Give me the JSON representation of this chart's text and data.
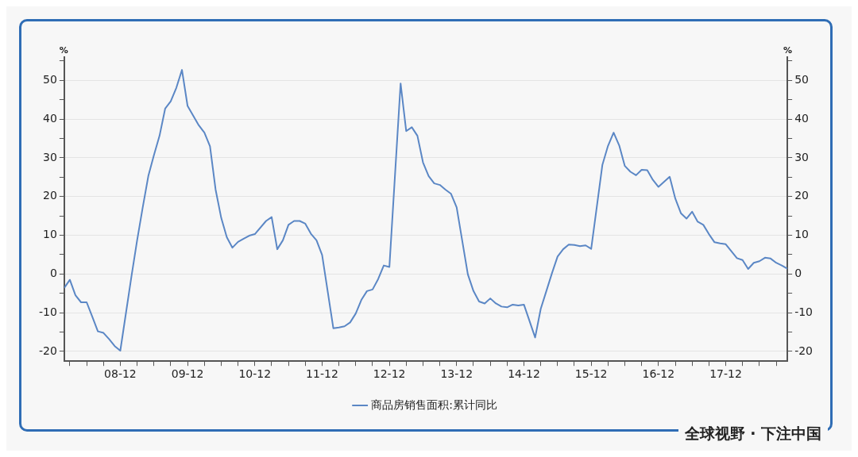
{
  "chart_data": {
    "type": "line",
    "ylabel": "%",
    "y2label": "%",
    "x": [
      "2008-02",
      "2008-03",
      "2008-04",
      "2008-05",
      "2008-06",
      "2008-07",
      "2008-08",
      "2008-09",
      "2008-10",
      "2008-11",
      "2008-12",
      "2009-02",
      "2009-03",
      "2009-04",
      "2009-05",
      "2009-06",
      "2009-07",
      "2009-08",
      "2009-09",
      "2009-10",
      "2009-11",
      "2009-12",
      "2010-02",
      "2010-03",
      "2010-04",
      "2010-05",
      "2010-06",
      "2010-07",
      "2010-08",
      "2010-09",
      "2010-10",
      "2010-11",
      "2010-12",
      "2011-02",
      "2011-03",
      "2011-04",
      "2011-05",
      "2011-06",
      "2011-07",
      "2011-08",
      "2011-09",
      "2011-10",
      "2011-11",
      "2011-12",
      "2012-02",
      "2012-03",
      "2012-04",
      "2012-05",
      "2012-06",
      "2012-07",
      "2012-08",
      "2012-09",
      "2012-10",
      "2012-11",
      "2012-12",
      "2013-02",
      "2013-03",
      "2013-04",
      "2013-05",
      "2013-06",
      "2013-07",
      "2013-08",
      "2013-09",
      "2013-10",
      "2013-11",
      "2013-12",
      "2014-02",
      "2014-03",
      "2014-04",
      "2014-05",
      "2014-06",
      "2014-07",
      "2014-08",
      "2014-09",
      "2014-10",
      "2014-11",
      "2014-12",
      "2015-02",
      "2015-03",
      "2015-04",
      "2015-05",
      "2015-06",
      "2015-07",
      "2015-08",
      "2015-09",
      "2015-10",
      "2015-11",
      "2015-12",
      "2016-02",
      "2016-03",
      "2016-04",
      "2016-05",
      "2016-06",
      "2016-07",
      "2016-08",
      "2016-09",
      "2016-10",
      "2016-11",
      "2016-12",
      "2017-02",
      "2017-03",
      "2017-04",
      "2017-05",
      "2017-06",
      "2017-07",
      "2017-08",
      "2017-09",
      "2017-10",
      "2017-11",
      "2017-12",
      "2018-02",
      "2018-03",
      "2018-04",
      "2018-05",
      "2018-06",
      "2018-07",
      "2018-08",
      "2018-09",
      "2018-10",
      "2018-11"
    ],
    "series": [
      {
        "name": "商品房销售面积:累计同比",
        "color": "#5b87c5",
        "values": [
          -3.6,
          -1.5,
          -5.5,
          -7.3,
          -7.3,
          -11,
          -14.8,
          -15.2,
          -16.8,
          -18.6,
          -19.8,
          -0.5,
          8.7,
          17.2,
          25.3,
          30.7,
          35.7,
          42.7,
          44.6,
          48.1,
          52.7,
          43.4,
          38.4,
          36.5,
          33,
          21.8,
          14.5,
          9.5,
          6.8,
          8.3,
          9.1,
          9.9,
          10.3,
          13.7,
          14.7,
          6.4,
          8.7,
          12.7,
          13.7,
          13.7,
          13,
          10.4,
          8.7,
          4.9,
          -14,
          -13.8,
          -13.5,
          -12.5,
          -10.2,
          -6.7,
          -4.4,
          -4,
          -1.3,
          2.2,
          1.8,
          49.2,
          36.9,
          37.9,
          35.7,
          28.8,
          25.3,
          23.4,
          23,
          21.8,
          20.7,
          17.2,
          -0.1,
          -4.4,
          -7.1,
          -7.6,
          -6.3,
          -7.6,
          -8.4,
          -8.6,
          -7.9,
          -8.1,
          -7.9,
          -16.4,
          -9,
          -4.4,
          0.2,
          4.5,
          6.4,
          7.6,
          7.5,
          7.2,
          7.4,
          6.5,
          28.2,
          33.1,
          36.5,
          33.2,
          27.9,
          26.4,
          25.5,
          26.9,
          26.8,
          24.3,
          22.5,
          25.1,
          19.5,
          15.7,
          14.3,
          16.1,
          13.5,
          12.7,
          10.3,
          8.2,
          7.9,
          7.7,
          4.1,
          3.6,
          1.3,
          2.9,
          3.3,
          4.2,
          4,
          2.9,
          2.2,
          1.4
        ]
      }
    ],
    "xlim": [
      "2008-02",
      "2018-11"
    ],
    "xticks": [
      {
        "value": "2008-03",
        "label": null
      },
      {
        "value": "2008-06",
        "label": null
      },
      {
        "value": "2008-09",
        "label": null
      },
      {
        "value": "2008-12",
        "label": "08-12"
      },
      {
        "value": "2009-03",
        "label": null
      },
      {
        "value": "2009-06",
        "label": null
      },
      {
        "value": "2009-09",
        "label": null
      },
      {
        "value": "2009-12",
        "label": "09-12"
      },
      {
        "value": "2010-03",
        "label": null
      },
      {
        "value": "2010-06",
        "label": null
      },
      {
        "value": "2010-09",
        "label": null
      },
      {
        "value": "2010-12",
        "label": "10-12"
      },
      {
        "value": "2011-03",
        "label": null
      },
      {
        "value": "2011-06",
        "label": null
      },
      {
        "value": "2011-09",
        "label": null
      },
      {
        "value": "2011-12",
        "label": "11-12"
      },
      {
        "value": "2012-03",
        "label": null
      },
      {
        "value": "2012-06",
        "label": null
      },
      {
        "value": "2012-09",
        "label": null
      },
      {
        "value": "2012-12",
        "label": "12-12"
      },
      {
        "value": "2013-03",
        "label": null
      },
      {
        "value": "2013-06",
        "label": null
      },
      {
        "value": "2013-09",
        "label": null
      },
      {
        "value": "2013-12",
        "label": "13-12"
      },
      {
        "value": "2014-03",
        "label": null
      },
      {
        "value": "2014-06",
        "label": null
      },
      {
        "value": "2014-09",
        "label": null
      },
      {
        "value": "2014-12",
        "label": "14-12"
      },
      {
        "value": "2015-03",
        "label": null
      },
      {
        "value": "2015-06",
        "label": null
      },
      {
        "value": "2015-09",
        "label": null
      },
      {
        "value": "2015-12",
        "label": "15-12"
      },
      {
        "value": "2016-03",
        "label": null
      },
      {
        "value": "2016-06",
        "label": null
      },
      {
        "value": "2016-09",
        "label": null
      },
      {
        "value": "2016-12",
        "label": "16-12"
      },
      {
        "value": "2017-03",
        "label": null
      },
      {
        "value": "2017-06",
        "label": null
      },
      {
        "value": "2017-09",
        "label": null
      },
      {
        "value": "2017-12",
        "label": "17-12"
      },
      {
        "value": "2018-03",
        "label": null
      },
      {
        "value": "2018-06",
        "label": null
      },
      {
        "value": "2018-09",
        "label": null
      }
    ],
    "ylim": [
      -22.5,
      56
    ],
    "yticks": [
      -20,
      {
        "value": -15,
        "label": null
      },
      -10,
      {
        "value": -5,
        "label": null
      },
      0,
      {
        "value": 5,
        "label": null
      },
      10,
      {
        "value": 15,
        "label": null
      },
      20,
      {
        "value": 25,
        "label": null
      },
      30,
      {
        "value": 35,
        "label": null
      },
      40,
      {
        "value": 45,
        "label": null
      },
      50,
      {
        "value": 55,
        "label": null
      }
    ],
    "y2lim": [
      -22.5,
      56
    ],
    "y2ticks": [
      -20,
      {
        "value": -15,
        "label": null
      },
      -10,
      {
        "value": -5,
        "label": null
      },
      0,
      {
        "value": 5,
        "label": null
      },
      10,
      {
        "value": 15,
        "label": null
      },
      20,
      {
        "value": 25,
        "label": null
      },
      30,
      {
        "value": 35,
        "label": null
      },
      40,
      {
        "value": 45,
        "label": null
      },
      50,
      {
        "value": 55,
        "label": null
      }
    ],
    "grid": "y",
    "legend": "bottom",
    "marker": "none",
    "line_style": "solid",
    "annotations": [
      "全球视野 · 下注中国"
    ]
  }
}
